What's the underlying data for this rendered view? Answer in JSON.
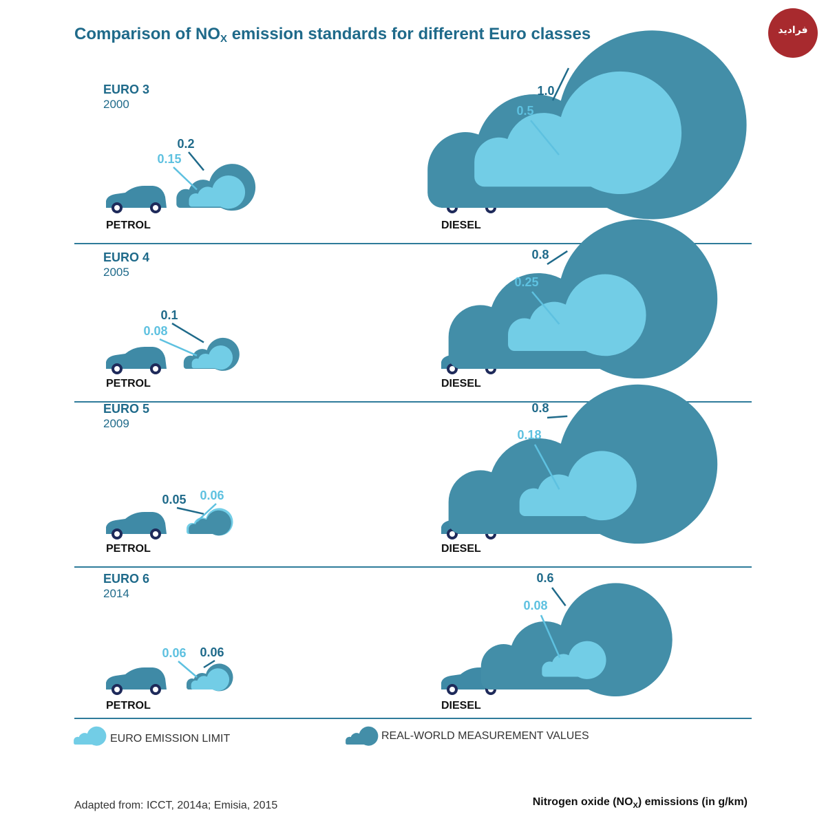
{
  "title": "Comparison of NO",
  "title_sub": "X",
  "title_rest": " emission standards for different Euro classes",
  "logo_text": "فرادید",
  "colors": {
    "limit": "#72cde6",
    "real": "#438ea8",
    "text_dark": "#1f6a8a",
    "text_light": "#5ec1e0",
    "car": "#3f8aa6",
    "wheel": "#1e2a5a",
    "rule": "#2e7b9a"
  },
  "legend": {
    "limit_label": "EURO EMISSION LIMIT",
    "real_label": "REAL-WORLD MEASUREMENT VALUES"
  },
  "footer": {
    "source": "Adapted from: ICCT, 2014a; Emisia, 2015",
    "units_pre": "Nitrogen oxide (NO",
    "units_sub": "X",
    "units_post": ") emissions (in g/km)"
  },
  "chart_data": {
    "type": "other",
    "fuels": [
      "PETROL",
      "DIESEL"
    ],
    "series": [
      {
        "name": "EURO EMISSION LIMIT"
      },
      {
        "name": "REAL-WORLD MEASUREMENT VALUES"
      }
    ],
    "classes": [
      {
        "class": "EURO 3",
        "year": "2000",
        "petrol": {
          "limit": 0.15,
          "limit_label": "0.15",
          "real": 0.2,
          "real_label": "0.2"
        },
        "diesel": {
          "limit": 0.5,
          "limit_label": "0.5",
          "real": 1.0,
          "real_label": "1.0"
        }
      },
      {
        "class": "EURO 4",
        "year": "2005",
        "petrol": {
          "limit": 0.08,
          "limit_label": "0.08",
          "real": 0.1,
          "real_label": "0.1"
        },
        "diesel": {
          "limit": 0.25,
          "limit_label": "0.25",
          "real": 0.8,
          "real_label": "0.8"
        }
      },
      {
        "class": "EURO 5",
        "year": "2009",
        "petrol": {
          "limit": 0.06,
          "limit_label": "0.06",
          "real": 0.05,
          "real_label": "0.05"
        },
        "diesel": {
          "limit": 0.18,
          "limit_label": "0.18",
          "real": 0.8,
          "real_label": "0.8"
        }
      },
      {
        "class": "EURO 6",
        "year": "2014",
        "petrol": {
          "limit": 0.06,
          "limit_label": "0.06",
          "real": 0.06,
          "real_label": "0.06"
        },
        "diesel": {
          "limit": 0.08,
          "limit_label": "0.08",
          "real": 0.6,
          "real_label": "0.6"
        }
      }
    ]
  }
}
